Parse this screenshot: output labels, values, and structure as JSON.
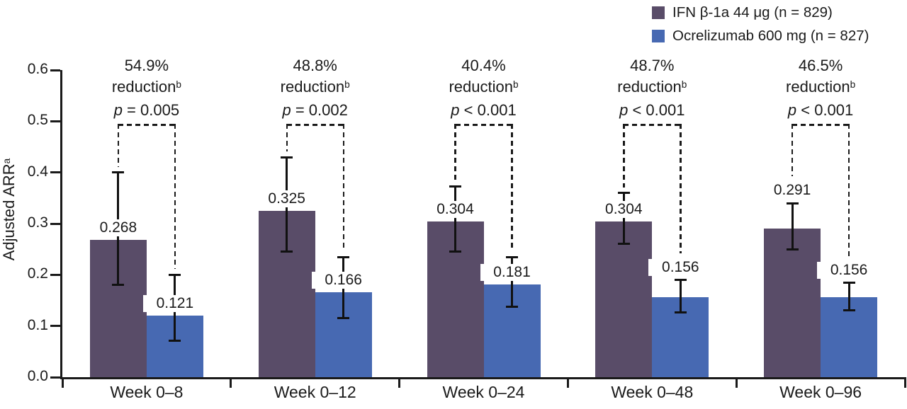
{
  "figure": {
    "background": "#ffffff"
  },
  "legend": {
    "items": [
      {
        "label": "IFN β-1a 44 μg (n = 829)",
        "color": "#594C68"
      },
      {
        "label": "Ocrelizumab 600 mg (n = 827)",
        "color": "#4769B2"
      }
    ]
  },
  "chart_data": {
    "type": "bar",
    "title": "",
    "ylabel": "Adjusted ARR",
    "ylabel_sup": "a",
    "xlabel": "",
    "ylim": [
      0,
      0.6
    ],
    "ytick_labels": [
      "0.0",
      "0.1",
      "0.2",
      "0.3",
      "0.4",
      "0.5",
      "0.6"
    ],
    "grid": false,
    "legend_position": "top-right",
    "categories": [
      "Week 0–8",
      "Week 0–12",
      "Week 0–24",
      "Week 0–48",
      "Week 0–96"
    ],
    "series": [
      {
        "name": "IFN β-1a 44 μg (n = 829)",
        "key": "ifn",
        "color": "#594C68",
        "values": [
          0.268,
          0.325,
          0.304,
          0.304,
          0.291
        ],
        "value_labels": [
          "0.268",
          "0.325",
          "0.304",
          "0.304",
          "0.291"
        ],
        "err_low": [
          0.18,
          0.245,
          0.245,
          0.26,
          0.25
        ],
        "err_high": [
          0.4,
          0.43,
          0.373,
          0.36,
          0.34
        ]
      },
      {
        "name": "Ocrelizumab 600 mg (n = 827)",
        "key": "ocrelizumab",
        "color": "#4769B2",
        "values": [
          0.121,
          0.166,
          0.181,
          0.156,
          0.156
        ],
        "value_labels": [
          "0.121",
          "0.166",
          "0.181",
          "0.156",
          "0.156"
        ],
        "err_low": [
          0.071,
          0.115,
          0.138,
          0.127,
          0.131
        ],
        "err_high": [
          0.2,
          0.235,
          0.235,
          0.19,
          0.184
        ]
      }
    ],
    "annotations": [
      {
        "pct": "54.9%",
        "word": "reduction",
        "sup": "b",
        "p_var": "p",
        "p_rest": " = 0.005"
      },
      {
        "pct": "48.8%",
        "word": "reduction",
        "sup": "b",
        "p_var": "p",
        "p_rest": " = 0.002"
      },
      {
        "pct": "40.4%",
        "word": "reduction",
        "sup": "b",
        "p_var": "p",
        "p_rest": " < 0.001"
      },
      {
        "pct": "48.7%",
        "word": "reduction",
        "sup": "b",
        "p_var": "p",
        "p_rest": " < 0.001"
      },
      {
        "pct": "46.5%",
        "word": "reduction",
        "sup": "b",
        "p_var": "p",
        "p_rest": " < 0.001"
      }
    ]
  }
}
